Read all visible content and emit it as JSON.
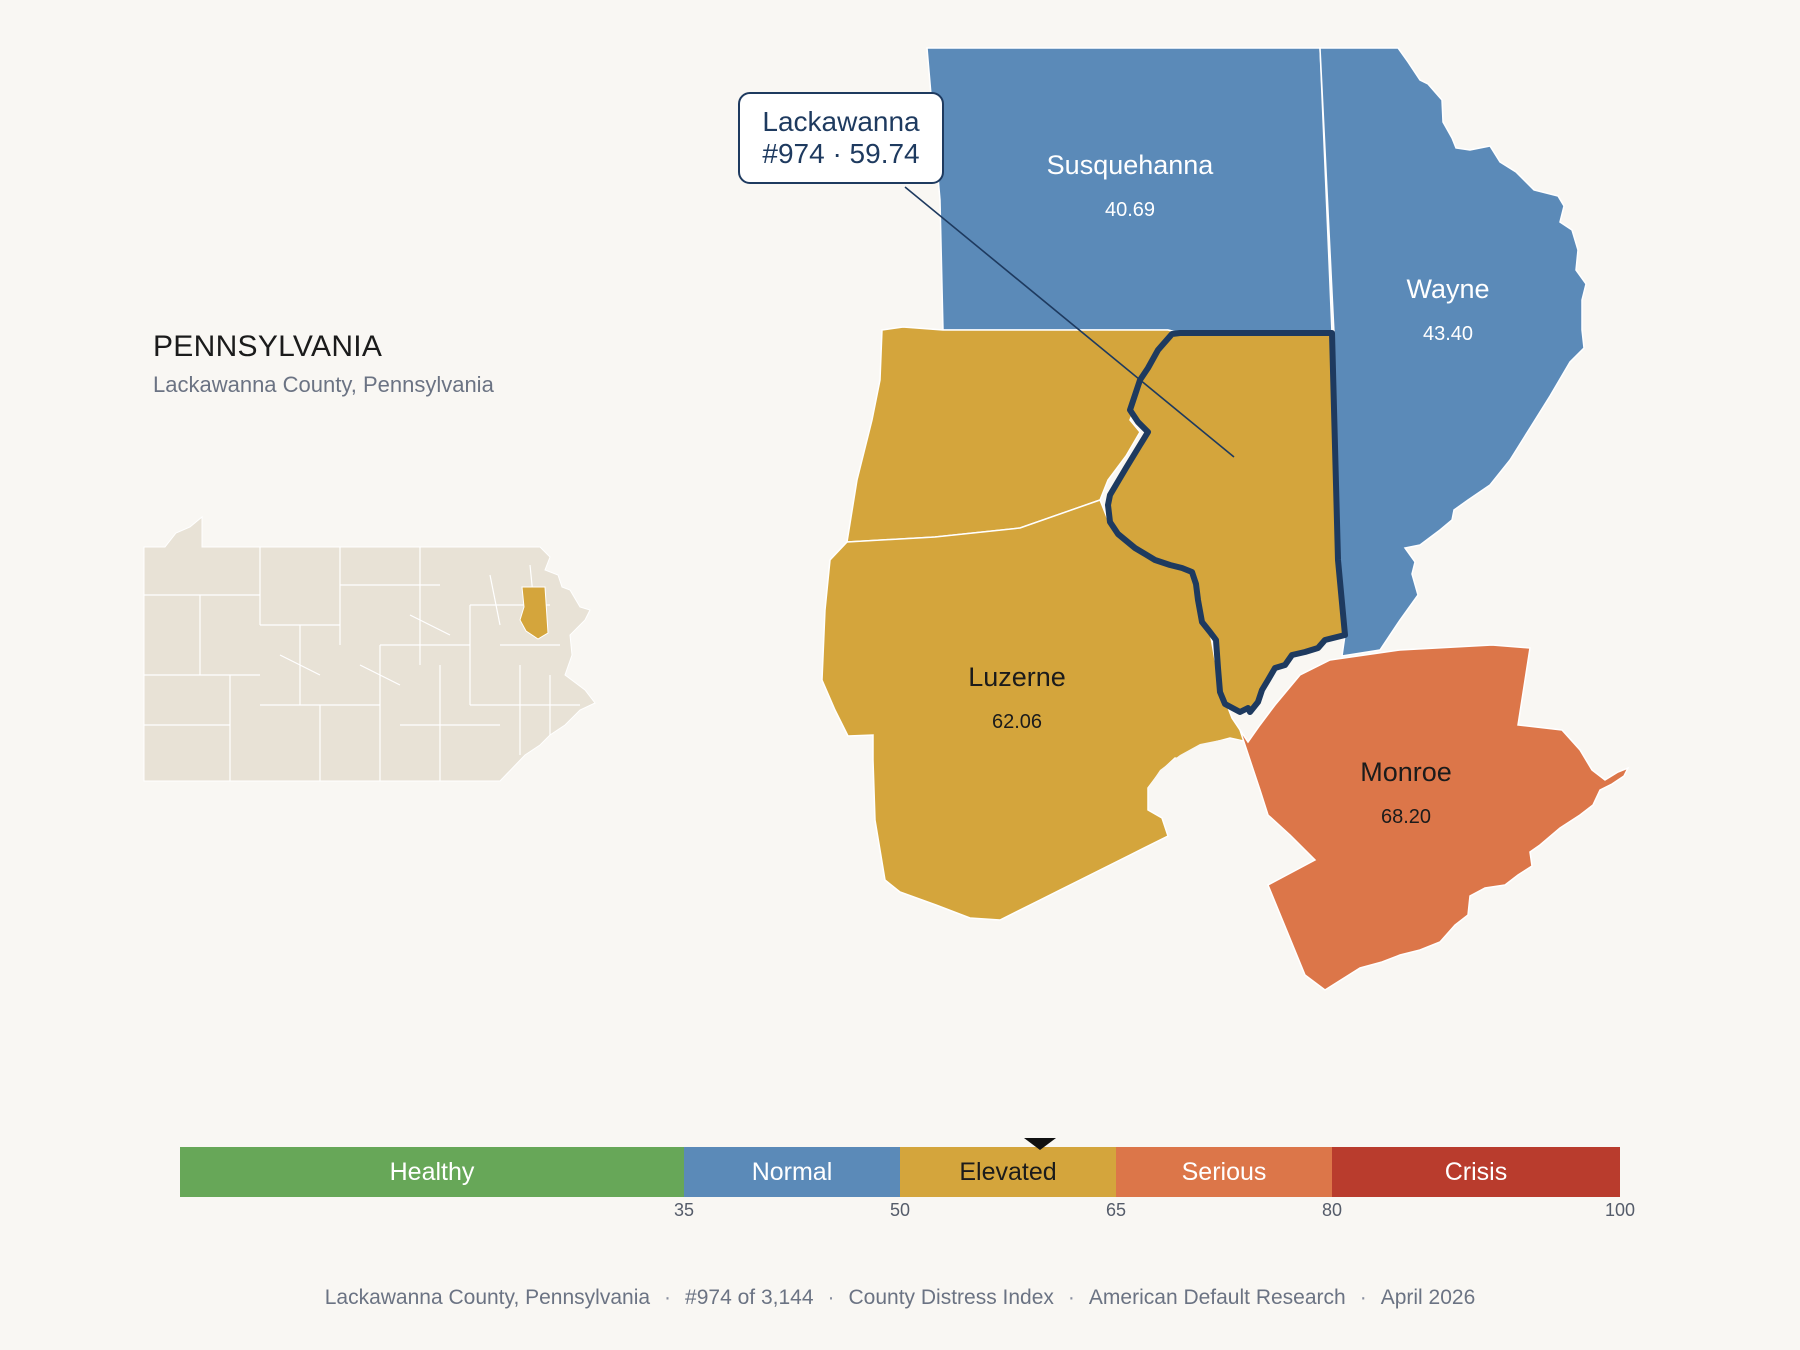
{
  "header": {
    "state": "PENNSYLVANIA",
    "subtitle": "Lackawanna County, Pennsylvania"
  },
  "callout": {
    "name": "Lackawanna",
    "detail": "#974 · 59.74"
  },
  "counties": [
    {
      "name": "Susquehanna",
      "value": "40.69",
      "color": "#5b8ab8"
    },
    {
      "name": "Wayne",
      "value": "43.40",
      "color": "#5b8ab8"
    },
    {
      "name": "Luzerne",
      "value": "62.06",
      "color": "#d4a53c"
    },
    {
      "name": "Monroe",
      "value": "68.20",
      "color": "#dc7649"
    },
    {
      "name": "Lackawanna",
      "value": "59.74",
      "color": "#d4a53c"
    }
  ],
  "scale": {
    "min": 0,
    "max": 100,
    "current": 59.74,
    "bands": [
      {
        "label": "Healthy",
        "from": 0,
        "to": 35,
        "color": "#67a758"
      },
      {
        "label": "Normal",
        "from": 35,
        "to": 50,
        "color": "#5b8ab8"
      },
      {
        "label": "Elevated",
        "from": 50,
        "to": 65,
        "color": "#d4a53c"
      },
      {
        "label": "Serious",
        "from": 65,
        "to": 80,
        "color": "#dc7649"
      },
      {
        "label": "Crisis",
        "from": 80,
        "to": 100,
        "color": "#b93c2d"
      }
    ],
    "ticks": [
      "35",
      "50",
      "65",
      "80",
      "100"
    ]
  },
  "footer": {
    "items": [
      "Lackawanna County, Pennsylvania",
      "#974 of 3,144",
      "County Distress Index",
      "American Default Research",
      "April 2026"
    ]
  }
}
